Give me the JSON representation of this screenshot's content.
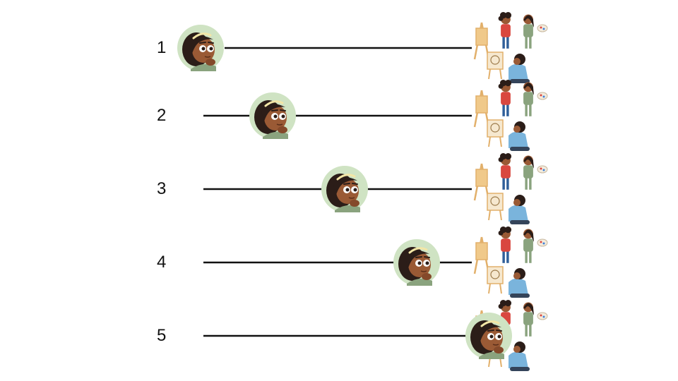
{
  "rows": [
    {
      "label": "1",
      "progress": 0.0
    },
    {
      "label": "2",
      "progress": 0.25
    },
    {
      "label": "3",
      "progress": 0.5
    },
    {
      "label": "4",
      "progress": 0.75
    },
    {
      "label": "5",
      "progress": 1.0
    }
  ],
  "colors": {
    "track": "#111111",
    "avatar_bg": "#cfe3c3",
    "skin": "#9a5a35",
    "hair": "#2b1d18",
    "headband": "#f3e6a6",
    "eye_white": "#ffffff",
    "shirt_green": "#8aa37e",
    "shirt_blue": "#7ab4dc",
    "jeans": "#2f5f9a",
    "red_top": "#d9473f",
    "easel": "#e2b06b",
    "canvas": "#f6e8cf"
  },
  "icons": {
    "avatar": "girl-avatar-icon",
    "group": "art-class-group-icon"
  }
}
